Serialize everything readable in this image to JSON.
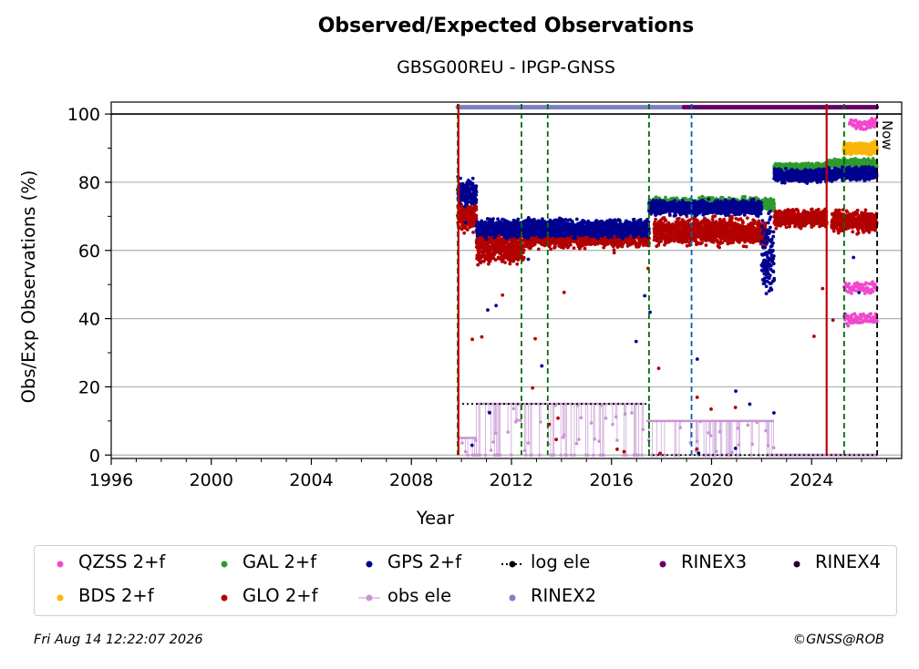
{
  "title": "Observed/Expected Observations",
  "subtitle": "GBSG00REU - IPGP-GNSS",
  "now_label": "Now",
  "footer_left": "Fri Aug 14 12:22:07 2026",
  "footer_right": "©GNSS@ROB",
  "colors": {
    "QZSS": "#f048cc",
    "BDS": "#fbb40a",
    "GAL": "#2f9a2f",
    "GLO": "#b30000",
    "GPS": "#00008f",
    "obs_ele": "#c695d2",
    "log_ele": "#000000",
    "RINEX2": "#7f7fc4",
    "RINEX3": "#660066",
    "RINEX4": "#220022",
    "equip_change": "#007000",
    "antenna_change": "#0062b0",
    "red_event": "#c00000"
  },
  "legend": [
    {
      "key": "QZSS",
      "label": "QZSS 2+f",
      "style": "dot"
    },
    {
      "key": "GAL",
      "label": "GAL 2+f",
      "style": "dot"
    },
    {
      "key": "GPS",
      "label": "GPS 2+f",
      "style": "dot"
    },
    {
      "key": "log_ele",
      "label": "log ele",
      "style": "dotline"
    },
    {
      "key": "RINEX3",
      "label": "RINEX3",
      "style": "dot"
    },
    {
      "key": "RINEX4",
      "label": "RINEX4",
      "style": "dot"
    },
    {
      "key": "BDS",
      "label": "BDS 2+f",
      "style": "dot"
    },
    {
      "key": "GLO",
      "label": "GLO 2+f",
      "style": "dot"
    },
    {
      "key": "obs_ele",
      "label": "obs ele",
      "style": "line"
    },
    {
      "key": "RINEX2",
      "label": "RINEX2",
      "style": "dot"
    }
  ],
  "chart_data": {
    "type": "scatter",
    "xlabel": "Year",
    "ylabel": "Obs/Exp Observations (%)",
    "xlim": [
      1996,
      2027.6
    ],
    "ylim": [
      -1,
      103.5
    ],
    "xticks": [
      1996,
      2000,
      2004,
      2008,
      2012,
      2016,
      2020,
      2024
    ],
    "yticks": [
      0,
      20,
      40,
      60,
      80,
      100
    ],
    "grid": "horizontal",
    "legend_position": "bottom",
    "events": [
      {
        "x": 2009.85,
        "type": "equip_change"
      },
      {
        "x": 2009.88,
        "type": "red_event"
      },
      {
        "x": 2012.4,
        "type": "equip_change"
      },
      {
        "x": 2013.45,
        "type": "equip_change"
      },
      {
        "x": 2017.5,
        "type": "equip_change"
      },
      {
        "x": 2019.2,
        "type": "antenna_change"
      },
      {
        "x": 2024.6,
        "type": "red_event"
      },
      {
        "x": 2025.3,
        "type": "equip_change"
      },
      {
        "x": 2026.62,
        "type": "now"
      }
    ],
    "series": [
      {
        "name": "GPS 2+f",
        "key": "GPS",
        "kind": "dots",
        "segments": [
          {
            "from": 2009.85,
            "to": 2010.6,
            "mean": 77,
            "spread": 3
          },
          {
            "from": 2010.6,
            "to": 2017.5,
            "mean": 66.5,
            "spread": 2
          },
          {
            "from": 2017.5,
            "to": 2022.0,
            "mean": 72.5,
            "spread": 1.6
          },
          {
            "from": 2022.0,
            "to": 2022.5,
            "mean": 58,
            "spread": 9
          },
          {
            "from": 2022.5,
            "to": 2024.6,
            "mean": 82,
            "spread": 1.5
          },
          {
            "from": 2024.6,
            "to": 2026.6,
            "mean": 82.5,
            "spread": 1.5
          }
        ]
      },
      {
        "name": "GLO 2+f",
        "key": "GLO",
        "kind": "dots",
        "segments": [
          {
            "from": 2009.85,
            "to": 2010.6,
            "mean": 70,
            "spread": 3
          },
          {
            "from": 2010.6,
            "to": 2012.5,
            "mean": 61,
            "spread": 4
          },
          {
            "from": 2012.5,
            "to": 2017.5,
            "mean": 64,
            "spread": 2.5
          },
          {
            "from": 2017.7,
            "to": 2022.2,
            "mean": 65.5,
            "spread": 3
          },
          {
            "from": 2022.5,
            "to": 2024.6,
            "mean": 69.5,
            "spread": 2
          },
          {
            "from": 2024.8,
            "to": 2026.6,
            "mean": 68.5,
            "spread": 2.5
          }
        ]
      },
      {
        "name": "GAL 2+f",
        "key": "GAL",
        "kind": "dots",
        "segments": [
          {
            "from": 2017.5,
            "to": 2022.5,
            "mean": 73.5,
            "spread": 1.5
          },
          {
            "from": 2022.5,
            "to": 2024.6,
            "mean": 84.5,
            "spread": 0.8
          },
          {
            "from": 2024.6,
            "to": 2026.6,
            "mean": 85.5,
            "spread": 1
          }
        ]
      },
      {
        "name": "QZSS 2+f",
        "key": "QZSS",
        "kind": "dots",
        "segments": [
          {
            "from": 2025.3,
            "to": 2026.6,
            "mean": 49,
            "spread": 1.5
          },
          {
            "from": 2025.3,
            "to": 2026.6,
            "mean": 40,
            "spread": 1.5
          },
          {
            "from": 2025.5,
            "to": 2026.6,
            "mean": 97,
            "spread": 1.2
          }
        ]
      },
      {
        "name": "BDS 2+f",
        "key": "BDS",
        "kind": "dots",
        "segments": [
          {
            "from": 2025.3,
            "to": 2026.6,
            "mean": 90,
            "spread": 1.3
          }
        ]
      },
      {
        "name": "obs ele",
        "key": "obs_ele",
        "kind": "elevation",
        "segments": [
          {
            "from": 2009.85,
            "to": 2010.6,
            "value": 5
          },
          {
            "from": 2010.6,
            "to": 2017.3,
            "value": 15
          },
          {
            "from": 2017.4,
            "to": 2022.5,
            "value": 10
          },
          {
            "from": 2022.5,
            "to": 2026.6,
            "value": 0
          }
        ]
      },
      {
        "name": "log ele",
        "key": "log_ele",
        "kind": "steps",
        "points": [
          [
            2009.85,
            15
          ],
          [
            2017.5,
            15
          ],
          [
            2017.5,
            0
          ],
          [
            2026.62,
            0
          ]
        ]
      },
      {
        "name": "RINEX2",
        "key": "RINEX2",
        "kind": "bar",
        "from": 2009.85,
        "to": 2018.9,
        "value": 102
      },
      {
        "name": "RINEX3",
        "key": "RINEX3",
        "kind": "bar",
        "from": 2018.9,
        "to": 2026.6,
        "value": 102
      }
    ]
  }
}
